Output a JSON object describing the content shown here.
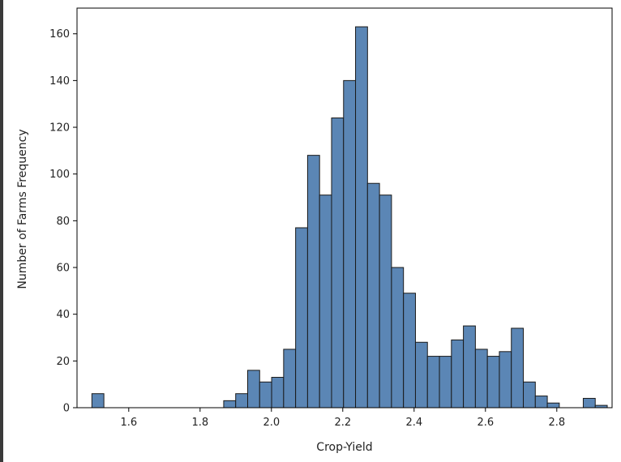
{
  "chart_data": {
    "type": "bar",
    "title": "",
    "xlabel": "Crop-Yield",
    "ylabel": "Number of Farms Frequency",
    "xlim": [
      1.455,
      2.955
    ],
    "ylim": [
      0,
      171
    ],
    "bar_color": "#5b86b5",
    "edge_color": "#1a1a1a",
    "bin_width": 0.0336,
    "grid": false,
    "x_ticks": [
      1.6,
      1.8,
      2.0,
      2.2,
      2.4,
      2.6,
      2.8
    ],
    "x_tick_labels": [
      "1.6",
      "1.8",
      "2.0",
      "2.2",
      "2.4",
      "2.6",
      "2.8"
    ],
    "y_ticks": [
      0,
      20,
      40,
      60,
      80,
      100,
      120,
      140,
      160
    ],
    "y_tick_labels": [
      "0",
      "20",
      "40",
      "60",
      "80",
      "100",
      "120",
      "140",
      "160"
    ],
    "bin_starts": [
      1.4967,
      1.8662,
      1.8998,
      1.9334,
      1.967,
      2.0006,
      2.0342,
      2.0678,
      2.1014,
      2.135,
      2.1686,
      2.2022,
      2.2358,
      2.2694,
      2.303,
      2.3366,
      2.3702,
      2.4038,
      2.4374,
      2.471,
      2.5046,
      2.5382,
      2.5718,
      2.6054,
      2.639,
      2.6726,
      2.7062,
      2.7398,
      2.7734,
      2.8742,
      2.9078
    ],
    "values": [
      6,
      3,
      6,
      16,
      11,
      13,
      25,
      77,
      108,
      91,
      124,
      140,
      163,
      96,
      91,
      60,
      49,
      28,
      22,
      22,
      29,
      35,
      25,
      22,
      24,
      34,
      11,
      5,
      2,
      4,
      1
    ]
  }
}
